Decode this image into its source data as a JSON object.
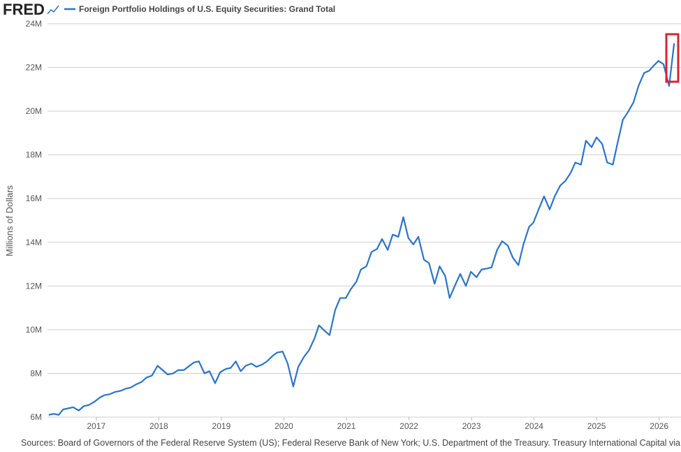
{
  "logo": "FRED",
  "chart_data": {
    "type": "line",
    "y_axis_label": "Millions of Dollars",
    "source": "Sources: Board of Governors of the Federal Reserve System (US); Federal Reserve Bank of New York; U.S. Department of the Treasury. Treasury International Capital via FRED®",
    "x": [
      2016.24,
      2016.32,
      2016.4,
      2016.47,
      2016.55,
      2016.63,
      2016.72,
      2016.8,
      2016.88,
      2016.97,
      2017.06,
      2017.13,
      2017.22,
      2017.3,
      2017.39,
      2017.47,
      2017.55,
      2017.64,
      2017.72,
      2017.8,
      2017.89,
      2017.98,
      2018.06,
      2018.14,
      2018.23,
      2018.31,
      2018.4,
      2018.47,
      2018.56,
      2018.64,
      2018.73,
      2018.81,
      2018.9,
      2018.98,
      2019.07,
      2019.15,
      2019.23,
      2019.31,
      2019.39,
      2019.48,
      2019.56,
      2019.65,
      2019.73,
      2019.82,
      2019.89,
      2019.98,
      2020.06,
      2020.15,
      2020.23,
      2020.32,
      2020.4,
      2020.49,
      2020.56,
      2020.65,
      2020.73,
      2020.82,
      2020.9,
      2020.99,
      2021.07,
      2021.16,
      2021.23,
      2021.32,
      2021.4,
      2021.49,
      2021.57,
      2021.66,
      2021.74,
      2021.83,
      2021.91,
      2021.99,
      2022.07,
      2022.15,
      2022.24,
      2022.32,
      2022.41,
      2022.49,
      2022.58,
      2022.65,
      2022.74,
      2022.82,
      2022.91,
      2022.99,
      2023.08,
      2023.16,
      2023.25,
      2023.32,
      2023.41,
      2023.49,
      2023.58,
      2023.66,
      2023.75,
      2023.83,
      2023.92,
      2023.99,
      2024.08,
      2024.16,
      2024.25,
      2024.33,
      2024.42,
      2024.5,
      2024.59,
      2024.66,
      2024.75,
      2024.83,
      2024.92,
      2025.0,
      2025.09,
      2025.17,
      2025.26,
      2025.34,
      2025.42,
      2025.5,
      2025.59,
      2025.67,
      2025.76,
      2025.84,
      2025.92,
      2025.99,
      2026.07,
      2026.16,
      2026.24
    ],
    "series": [
      {
        "name": "Foreign Portfolio Holdings of U.S. Equity Securities: Grand Total",
        "color": "#2b74c9",
        "values": [
          6100000,
          6150000,
          6100000,
          6350000,
          6400000,
          6450000,
          6300000,
          6500000,
          6550000,
          6700000,
          6900000,
          7000000,
          7050000,
          7150000,
          7200000,
          7300000,
          7350000,
          7500000,
          7600000,
          7800000,
          7900000,
          8350000,
          8150000,
          7950000,
          8000000,
          8150000,
          8150000,
          8300000,
          8500000,
          8550000,
          8000000,
          8100000,
          7550000,
          8050000,
          8200000,
          8250000,
          8550000,
          8100000,
          8350000,
          8450000,
          8300000,
          8400000,
          8550000,
          8800000,
          8950000,
          9000000,
          8450000,
          7400000,
          8300000,
          8750000,
          9050000,
          9600000,
          10200000,
          9950000,
          9750000,
          10900000,
          11450000,
          11450000,
          11850000,
          12200000,
          12750000,
          12900000,
          13550000,
          13700000,
          14150000,
          13650000,
          14350000,
          14250000,
          15150000,
          14200000,
          13900000,
          14250000,
          13200000,
          13050000,
          12100000,
          12900000,
          12450000,
          11450000,
          12050000,
          12550000,
          12000000,
          12650000,
          12400000,
          12750000,
          12800000,
          12850000,
          13650000,
          14050000,
          13850000,
          13300000,
          12950000,
          13900000,
          14700000,
          14900000,
          15550000,
          16100000,
          15500000,
          16100000,
          16600000,
          16800000,
          17200000,
          17650000,
          17550000,
          18650000,
          18350000,
          18800000,
          18500000,
          17650000,
          17550000,
          18600000,
          19600000,
          19950000,
          20400000,
          21150000,
          21750000,
          21850000,
          22100000,
          22300000,
          22150000,
          21150000,
          23100000
        ]
      }
    ],
    "xlim": [
      2016.22,
      2026.35
    ],
    "xticks": [
      2017,
      2018,
      2019,
      2020,
      2021,
      2022,
      2023,
      2024,
      2025,
      2026
    ],
    "ylim": [
      6000000,
      24000000
    ],
    "yticks": [
      {
        "value": 6000000,
        "label": "6M"
      },
      {
        "value": 8000000,
        "label": "8M"
      },
      {
        "value": 10000000,
        "label": "10M"
      },
      {
        "value": 12000000,
        "label": "12M"
      },
      {
        "value": 14000000,
        "label": "14M"
      },
      {
        "value": 16000000,
        "label": "16M"
      },
      {
        "value": 18000000,
        "label": "18M"
      },
      {
        "value": 20000000,
        "label": "20M"
      },
      {
        "value": 22000000,
        "label": "22M"
      },
      {
        "value": 24000000,
        "label": "24M"
      }
    ],
    "grid": true
  }
}
